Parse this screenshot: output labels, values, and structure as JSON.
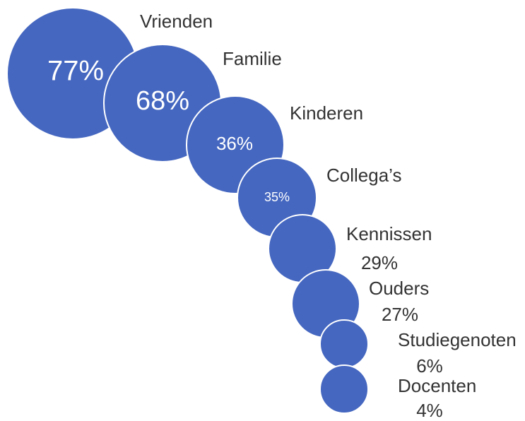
{
  "chart_data": {
    "type": "bubble",
    "categories": [
      "Vrienden",
      "Familie",
      "Kinderen",
      "Collega’s",
      "Kennissen",
      "Ouders",
      "Studiegenoten",
      "Docenten"
    ],
    "values": [
      77,
      68,
      36,
      35,
      29,
      27,
      6,
      4
    ],
    "value_labels": [
      "77%",
      "68%",
      "36%",
      "35%",
      "29%",
      "27%",
      "6%",
      "4%"
    ],
    "color": "#4567c0"
  }
}
